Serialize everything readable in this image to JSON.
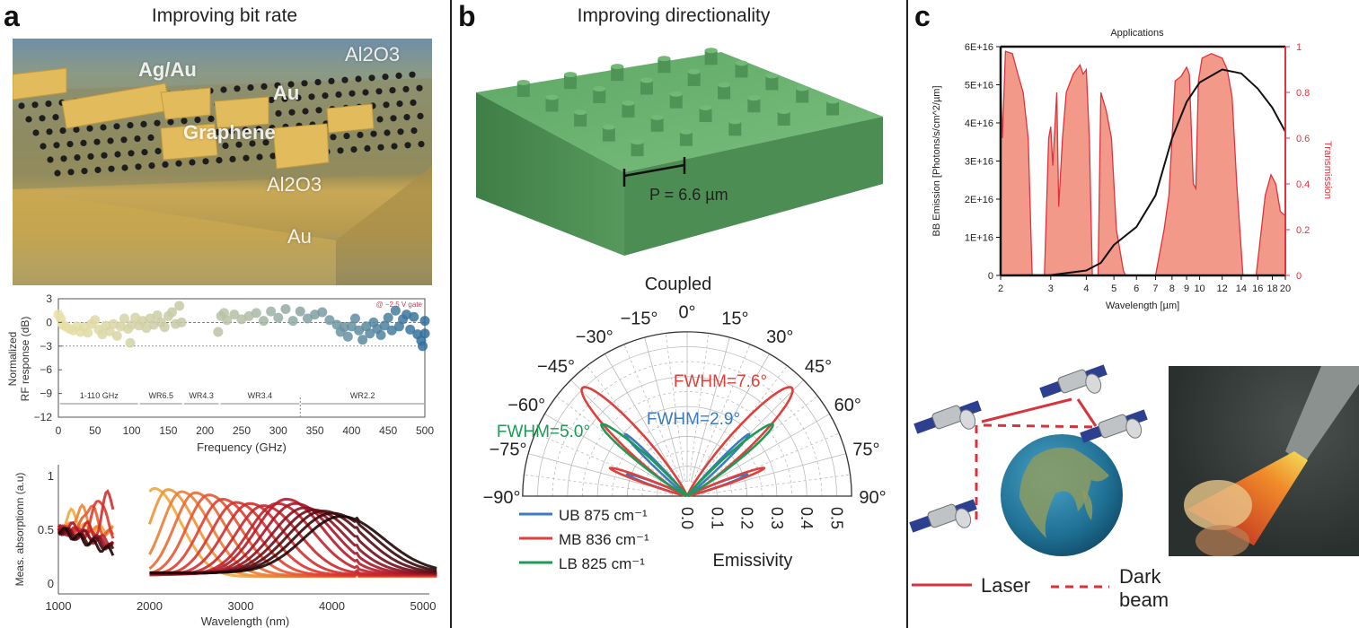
{
  "panels": {
    "a": {
      "label": "a",
      "title": "Improving bit rate",
      "render_labels": {
        "ag_au": "Ag/Au",
        "au_top": "Au",
        "graphene": "Graphene",
        "al2o3_top": "Al2O3",
        "al2o3_mid": "Al2O3",
        "au_bottom": "Au"
      }
    },
    "b": {
      "label": "b",
      "title": "Improving directionality",
      "period_label": "P = 6.6 µm"
    },
    "c": {
      "label": "c",
      "legend": {
        "laser": "Laser",
        "dark_beam": "Dark beam"
      }
    }
  },
  "chart_data": [
    {
      "id": "rf_response",
      "type": "scatter",
      "xlabel": "Frequency (GHz)",
      "ylabel": "Normalized RF response (dB)",
      "xlim": [
        0,
        500
      ],
      "ylim": [
        -12,
        3
      ],
      "xticks": [
        0,
        50,
        100,
        150,
        200,
        250,
        300,
        350,
        400,
        450,
        500
      ],
      "yticks": [
        3,
        0,
        -3,
        -6,
        -9,
        -12
      ],
      "ytick_labels": [
        "3",
        "0",
        "−3",
        "−6",
        "−9",
        "−12"
      ],
      "reference_lines_db": [
        0,
        -3
      ],
      "annotation": "@ −2.5 V gate",
      "color_scale": [
        "#e9dfa6",
        "#b4bfa6",
        "#2f6f9d"
      ],
      "bands": [
        {
          "label": "1-110 GHz",
          "from": 1,
          "to": 110
        },
        {
          "label": "WR6.5",
          "from": 110,
          "to": 170
        },
        {
          "label": "WR4.3",
          "from": 170,
          "to": 220
        },
        {
          "label": "WR3.4",
          "from": 220,
          "to": 330
        },
        {
          "label": "WR2.2",
          "from": 330,
          "to": 500
        }
      ],
      "points": [
        [
          0,
          1
        ],
        [
          3,
          0.5
        ],
        [
          6,
          -0.3
        ],
        [
          10,
          -0.5
        ],
        [
          15,
          -0.8
        ],
        [
          20,
          -1
        ],
        [
          25,
          -0.5
        ],
        [
          30,
          -1.2
        ],
        [
          35,
          -0.6
        ],
        [
          40,
          -1.3
        ],
        [
          45,
          -0.2
        ],
        [
          50,
          0.3
        ],
        [
          55,
          -0.9
        ],
        [
          60,
          -1.5
        ],
        [
          65,
          -0.4
        ],
        [
          70,
          -1.1
        ],
        [
          75,
          -0.2
        ],
        [
          80,
          -1.7
        ],
        [
          85,
          -0.5
        ],
        [
          90,
          0.5
        ],
        [
          95,
          -0.8
        ],
        [
          98,
          -2.6
        ],
        [
          100,
          -0.3
        ],
        [
          105,
          0.6
        ],
        [
          110,
          -0.4
        ],
        [
          115,
          0.2
        ],
        [
          120,
          -0.7
        ],
        [
          125,
          0.5
        ],
        [
          130,
          -0.3
        ],
        [
          135,
          0.9
        ],
        [
          140,
          0
        ],
        [
          145,
          -0.6
        ],
        [
          150,
          0.8
        ],
        [
          155,
          1.3
        ],
        [
          160,
          -0.2
        ],
        [
          165,
          2.1
        ],
        [
          168,
          0
        ],
        [
          218,
          -1.2
        ],
        [
          222,
          0.8
        ],
        [
          226,
          1.2
        ],
        [
          230,
          0.3
        ],
        [
          240,
          1
        ],
        [
          250,
          0.4
        ],
        [
          260,
          0.8
        ],
        [
          270,
          1.2
        ],
        [
          280,
          0.2
        ],
        [
          290,
          1.4
        ],
        [
          300,
          0.6
        ],
        [
          310,
          1.7
        ],
        [
          320,
          0.2
        ],
        [
          330,
          1.4
        ],
        [
          340,
          0.5
        ],
        [
          350,
          1
        ],
        [
          360,
          1.3
        ],
        [
          370,
          0.3
        ],
        [
          380,
          -0.3
        ],
        [
          385,
          -1.2
        ],
        [
          390,
          -0.6
        ],
        [
          395,
          -1.8
        ],
        [
          400,
          -0.5
        ],
        [
          405,
          0.5
        ],
        [
          410,
          -1
        ],
        [
          415,
          -2.2
        ],
        [
          420,
          -0.5
        ],
        [
          425,
          -1.4
        ],
        [
          430,
          0
        ],
        [
          435,
          -0.8
        ],
        [
          440,
          -1.6
        ],
        [
          445,
          -0.4
        ],
        [
          450,
          0.6
        ],
        [
          455,
          -1
        ],
        [
          460,
          1.5
        ],
        [
          465,
          -0.5
        ],
        [
          470,
          0.4
        ],
        [
          475,
          1
        ],
        [
          480,
          -0.9
        ],
        [
          485,
          0.7
        ],
        [
          490,
          -1.5
        ],
        [
          495,
          -2.3
        ],
        [
          497,
          -3
        ],
        [
          500,
          0.2
        ],
        [
          500,
          -1.4
        ]
      ]
    },
    {
      "id": "absorption",
      "type": "line",
      "xlabel": "Wavelength (nm)",
      "ylabel": "Meas. absorptionn (a.u)",
      "xlim": [
        1000,
        5150
      ],
      "ylim": [
        -0.1,
        1.1
      ],
      "xticks": [
        1000,
        2000,
        3000,
        4000,
        5000
      ],
      "yticks": [
        0,
        0.5,
        1
      ],
      "ytick_labels": [
        "0",
        "0.5",
        "1"
      ],
      "color_scale": [
        "#f2a93a",
        "#e03a2e",
        "#b0182a",
        "#1e0606"
      ],
      "nir_series_peaks": [
        [
          1150,
          0.65
        ],
        [
          1250,
          0.7
        ],
        [
          1350,
          0.75
        ],
        [
          1450,
          0.85
        ],
        [
          1550,
          0.93
        ],
        [
          1300,
          0.6
        ],
        [
          1200,
          0.58
        ],
        [
          1350,
          0.55
        ],
        [
          1450,
          0.52
        ],
        [
          1500,
          0.5
        ]
      ],
      "mir_series_peaks": [
        [
          2050,
          0.88
        ],
        [
          2200,
          0.87
        ],
        [
          2350,
          0.85
        ],
        [
          2500,
          0.84
        ],
        [
          2650,
          0.82
        ],
        [
          2800,
          0.78
        ],
        [
          2950,
          0.75
        ],
        [
          3100,
          0.74
        ],
        [
          3250,
          0.72
        ],
        [
          3400,
          0.74
        ],
        [
          3500,
          0.78
        ],
        [
          3600,
          0.74
        ],
        [
          3700,
          0.7
        ],
        [
          3800,
          0.68
        ],
        [
          3900,
          0.67
        ],
        [
          4000,
          0.65
        ],
        [
          4100,
          0.62
        ]
      ]
    },
    {
      "id": "polar_emissivity",
      "type": "line",
      "title": "Coupled",
      "xlabel": "Emissivity",
      "angle_ticks": [
        -90,
        -75,
        -60,
        -45,
        -30,
        -15,
        0,
        15,
        30,
        45,
        60,
        75,
        90
      ],
      "angle_tick_labels": [
        "−90°",
        "−75°",
        "−60°",
        "−45°",
        "−30°",
        "−15°",
        "0°",
        "15°",
        "30°",
        "45°",
        "60°",
        "75°",
        "90°"
      ],
      "rlim": [
        0,
        0.55
      ],
      "rticks": [
        0.0,
        0.1,
        0.2,
        0.3,
        0.4,
        0.5
      ],
      "rtick_labels": [
        "0.0",
        "0.1",
        "0.2",
        "0.3",
        "0.4",
        "0.5"
      ],
      "series": [
        {
          "name": "UB 875 cm⁻¹",
          "color": "#3b7bc0",
          "annotation": "FWHM=2.9°",
          "lobes": [
            [
              45,
              0.29,
              2.9
            ],
            [
              70,
              0.21,
              3
            ]
          ]
        },
        {
          "name": "MB 836 cm⁻¹",
          "color": "#e0403c",
          "annotation": "FWHM=7.6°",
          "lobes": [
            [
              44,
              0.5,
              7.6
            ],
            [
              70,
              0.27,
              3
            ]
          ]
        },
        {
          "name": "LB 825 cm⁻¹",
          "color": "#1e9a55",
          "annotation": "FWHM=5.0°",
          "lobes": [
            [
              50,
              0.37,
              5.0
            ]
          ]
        }
      ]
    },
    {
      "id": "bb_transmission",
      "type": "area",
      "title": "Applications",
      "xlabel": "Wavelength [µm]",
      "ylabel": "BB Emission [Photons/s/cm^2/µm]",
      "y2label": "Transmission",
      "xscale": "log",
      "xlim": [
        2,
        20
      ],
      "xticks": [
        2,
        3,
        4,
        5,
        6,
        7,
        8,
        9,
        10,
        12,
        14,
        16,
        18,
        20
      ],
      "ylim": [
        0,
        6e+16
      ],
      "yticks": [
        0,
        1e+16,
        2e+16,
        3e+16,
        4e+16,
        5e+16,
        6e+16
      ],
      "ytick_labels": [
        "0",
        "1E+16",
        "2E+16",
        "3E+16",
        "4E+16",
        "5E+16",
        "6E+16"
      ],
      "y2lim": [
        0,
        1
      ],
      "y2ticks": [
        0,
        0.2,
        0.4,
        0.6,
        0.8,
        1
      ],
      "y2tick_labels": [
        "0",
        "0.2",
        "0.4",
        "0.6",
        "0.8",
        "1"
      ],
      "transmission_color": "#e0333d",
      "transmission_fill": "#f2998a",
      "transmission": [
        [
          2.0,
          0.87
        ],
        [
          2.03,
          0.6
        ],
        [
          2.08,
          0.98
        ],
        [
          2.2,
          0.97
        ],
        [
          2.3,
          0.88
        ],
        [
          2.4,
          0.8
        ],
        [
          2.5,
          0.6
        ],
        [
          2.58,
          0
        ],
        [
          2.85,
          0
        ],
        [
          2.95,
          0.6
        ],
        [
          3.0,
          0.65
        ],
        [
          3.05,
          0.48
        ],
        [
          3.15,
          0.8
        ],
        [
          3.2,
          0.3
        ],
        [
          3.3,
          0.6
        ],
        [
          3.4,
          0.8
        ],
        [
          3.6,
          0.88
        ],
        [
          3.8,
          0.92
        ],
        [
          3.9,
          0.88
        ],
        [
          4.0,
          0.9
        ],
        [
          4.1,
          0.6
        ],
        [
          4.2,
          0
        ],
        [
          4.4,
          0
        ],
        [
          4.5,
          0.8
        ],
        [
          4.7,
          0.72
        ],
        [
          4.9,
          0.6
        ],
        [
          5.1,
          0.2
        ],
        [
          5.4,
          0.02
        ],
        [
          5.5,
          0
        ],
        [
          7.0,
          0
        ],
        [
          7.5,
          0.2
        ],
        [
          7.8,
          0.35
        ],
        [
          8.2,
          0.85
        ],
        [
          8.6,
          0.87
        ],
        [
          9.0,
          0.91
        ],
        [
          9.2,
          0.88
        ],
        [
          9.5,
          0.4
        ],
        [
          9.7,
          0.38
        ],
        [
          9.9,
          0.85
        ],
        [
          10.2,
          0.95
        ],
        [
          11,
          0.97
        ],
        [
          12,
          0.95
        ],
        [
          12.5,
          0.9
        ],
        [
          13,
          0.78
        ],
        [
          13.5,
          0.4
        ],
        [
          14.2,
          0
        ],
        [
          15.8,
          0
        ],
        [
          17,
          0.35
        ],
        [
          17.8,
          0.44
        ],
        [
          18.5,
          0.4
        ],
        [
          19.2,
          0.28
        ],
        [
          20,
          0.26
        ]
      ],
      "bb_emission": [
        [
          2,
          0
        ],
        [
          3,
          100000000000000.0
        ],
        [
          4,
          1300000000000000.0
        ],
        [
          4.5,
          3300000000000000.0
        ],
        [
          5,
          8000000000000000.0
        ],
        [
          6,
          1.27e+16
        ],
        [
          7,
          2.1e+16
        ],
        [
          8,
          3.6e+16
        ],
        [
          9,
          4.55e+16
        ],
        [
          10,
          5.06e+16
        ],
        [
          12,
          5.4e+16
        ],
        [
          14,
          5.3e+16
        ],
        [
          16,
          4.9e+16
        ],
        [
          18,
          4.4e+16
        ],
        [
          20,
          3.77e+16
        ]
      ]
    }
  ]
}
